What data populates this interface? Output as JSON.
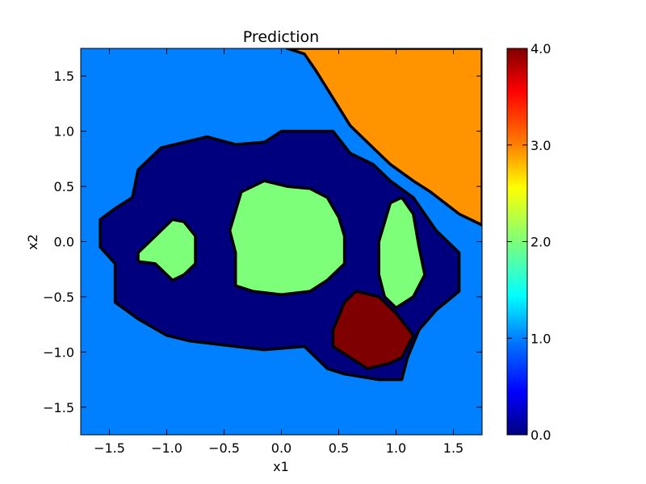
{
  "chart_data": {
    "type": "heatmap",
    "title": "Prediction",
    "xlabel": "x1",
    "ylabel": "x2",
    "xlim": [
      -1.75,
      1.75
    ],
    "ylim": [
      -1.75,
      1.75
    ],
    "xticks": [
      -1.5,
      -1.0,
      -0.5,
      0.0,
      0.5,
      1.0,
      1.5
    ],
    "xtick_labels": [
      "−1.5",
      "−1.0",
      "−0.5",
      "0.0",
      "0.5",
      "1.0",
      "1.5"
    ],
    "yticks": [
      -1.5,
      -1.0,
      -0.5,
      0.0,
      0.5,
      1.0,
      1.5
    ],
    "ytick_labels": [
      "−1.5",
      "−1.0",
      "−0.5",
      "0.0",
      "0.5",
      "1.0",
      "1.5"
    ],
    "colorbar": {
      "range": [
        0.0,
        4.0
      ],
      "ticks": [
        0.0,
        1.0,
        2.0,
        3.0,
        4.0
      ],
      "tick_labels": [
        "0.0",
        "1.0",
        "2.0",
        "3.0",
        "4.0"
      ],
      "colormap": "jet"
    },
    "class_colors": {
      "0": "#00007f",
      "1": "#0080ff",
      "2": "#7dff7a",
      "3": "#ff9400",
      "4": "#7f0000"
    },
    "background_class": 1,
    "regions": [
      {
        "class": 0,
        "polygon": [
          [
            -1.58,
            0.2
          ],
          [
            -1.45,
            0.3
          ],
          [
            -1.3,
            0.4
          ],
          [
            -1.25,
            0.65
          ],
          [
            -1.05,
            0.85
          ],
          [
            -0.65,
            0.95
          ],
          [
            -0.4,
            0.88
          ],
          [
            -0.15,
            0.9
          ],
          [
            0.0,
            1.0
          ],
          [
            0.45,
            1.0
          ],
          [
            0.6,
            0.8
          ],
          [
            0.8,
            0.7
          ],
          [
            0.95,
            0.55
          ],
          [
            1.15,
            0.4
          ],
          [
            1.35,
            0.1
          ],
          [
            1.55,
            -0.1
          ],
          [
            1.55,
            -0.45
          ],
          [
            1.35,
            -0.62
          ],
          [
            1.2,
            -0.8
          ],
          [
            1.1,
            -1.05
          ],
          [
            1.05,
            -1.25
          ],
          [
            0.85,
            -1.25
          ],
          [
            0.55,
            -1.2
          ],
          [
            0.4,
            -1.15
          ],
          [
            0.2,
            -0.95
          ],
          [
            -0.15,
            -0.98
          ],
          [
            -0.4,
            -0.95
          ],
          [
            -0.8,
            -0.9
          ],
          [
            -1.0,
            -0.85
          ],
          [
            -1.25,
            -0.7
          ],
          [
            -1.45,
            -0.55
          ],
          [
            -1.45,
            -0.2
          ],
          [
            -1.58,
            -0.05
          ]
        ]
      },
      {
        "class": 3,
        "polygon": [
          [
            0.05,
            1.75
          ],
          [
            1.75,
            1.75
          ],
          [
            1.75,
            0.15
          ],
          [
            1.55,
            0.25
          ],
          [
            1.3,
            0.45
          ],
          [
            1.15,
            0.55
          ],
          [
            0.95,
            0.7
          ],
          [
            0.8,
            0.85
          ],
          [
            0.6,
            1.05
          ],
          [
            0.45,
            1.3
          ],
          [
            0.3,
            1.55
          ],
          [
            0.2,
            1.7
          ]
        ]
      },
      {
        "class": 2,
        "polygon": [
          [
            -1.25,
            -0.1
          ],
          [
            -1.1,
            0.05
          ],
          [
            -0.95,
            0.2
          ],
          [
            -0.85,
            0.18
          ],
          [
            -0.75,
            0.05
          ],
          [
            -0.75,
            -0.2
          ],
          [
            -0.85,
            -0.3
          ],
          [
            -0.95,
            -0.35
          ],
          [
            -1.1,
            -0.2
          ],
          [
            -1.25,
            -0.18
          ]
        ]
      },
      {
        "class": 2,
        "polygon": [
          [
            -0.45,
            0.1
          ],
          [
            -0.35,
            0.45
          ],
          [
            -0.15,
            0.55
          ],
          [
            0.05,
            0.5
          ],
          [
            0.25,
            0.48
          ],
          [
            0.4,
            0.4
          ],
          [
            0.5,
            0.22
          ],
          [
            0.55,
            0.05
          ],
          [
            0.55,
            -0.2
          ],
          [
            0.4,
            -0.35
          ],
          [
            0.25,
            -0.45
          ],
          [
            0.0,
            -0.48
          ],
          [
            -0.25,
            -0.45
          ],
          [
            -0.4,
            -0.4
          ],
          [
            -0.4,
            -0.1
          ]
        ]
      },
      {
        "class": 2,
        "polygon": [
          [
            0.85,
            0.0
          ],
          [
            0.95,
            0.35
          ],
          [
            1.05,
            0.4
          ],
          [
            1.15,
            0.25
          ],
          [
            1.2,
            -0.05
          ],
          [
            1.25,
            -0.3
          ],
          [
            1.15,
            -0.5
          ],
          [
            1.0,
            -0.6
          ],
          [
            0.9,
            -0.5
          ],
          [
            0.85,
            -0.3
          ]
        ]
      },
      {
        "class": 4,
        "polygon": [
          [
            0.45,
            -0.8
          ],
          [
            0.55,
            -0.55
          ],
          [
            0.65,
            -0.45
          ],
          [
            0.85,
            -0.5
          ],
          [
            1.0,
            -0.65
          ],
          [
            1.15,
            -0.85
          ],
          [
            1.05,
            -1.05
          ],
          [
            0.95,
            -1.1
          ],
          [
            0.75,
            -1.15
          ],
          [
            0.6,
            -1.05
          ],
          [
            0.45,
            -0.95
          ]
        ]
      }
    ]
  }
}
